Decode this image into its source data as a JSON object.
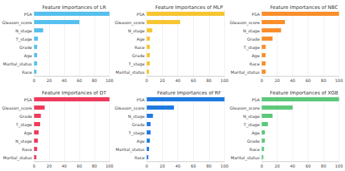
{
  "chart_data": [
    {
      "type": "bar",
      "orientation": "horizontal",
      "title": "Feature Importances of LR",
      "categories": [
        "PSA",
        "Gleason_score",
        "N_stage",
        "T_stage",
        "Grade",
        "Age",
        "Marital_status",
        "Race"
      ],
      "values": [
        100,
        60,
        12,
        5,
        4,
        4,
        4,
        3
      ],
      "color": "#55c0ee",
      "xlim": [
        0,
        100
      ],
      "xticks": [
        0,
        20,
        40,
        60,
        80,
        100
      ],
      "grid": true
    },
    {
      "type": "bar",
      "orientation": "horizontal",
      "title": "Feature Importances of MLP",
      "categories": [
        "PSA",
        "Gleason_score",
        "N_stage",
        "Age",
        "Race",
        "Grade",
        "T_stage",
        "Marital_status"
      ],
      "values": [
        100,
        43,
        7,
        4,
        4,
        4,
        4,
        3
      ],
      "color": "#f7c531",
      "xlim": [
        0,
        100
      ],
      "xticks": [
        0,
        20,
        40,
        60,
        80,
        100
      ],
      "grid": true
    },
    {
      "type": "bar",
      "orientation": "horizontal",
      "title": "Feature Importances of NBC",
      "categories": [
        "PSA",
        "Gleason_score",
        "N_stage",
        "Grade",
        "T_stage",
        "Age",
        "Race",
        "Marital_status"
      ],
      "values": [
        100,
        30,
        25,
        14,
        5,
        5,
        5,
        5
      ],
      "color": "#f98e2b",
      "xlim": [
        0,
        100
      ],
      "xticks": [
        0,
        20,
        40,
        60,
        80,
        100
      ],
      "grid": true
    },
    {
      "type": "bar",
      "orientation": "horizontal",
      "title": "Feature Importances of DT",
      "categories": [
        "PSA",
        "Gleason_score",
        "Grade",
        "T_stage",
        "Age",
        "N_stage",
        "Race",
        "Marital_status"
      ],
      "values": [
        100,
        14,
        9,
        8,
        6,
        5,
        4,
        3
      ],
      "color": "#ee3a5c",
      "xlim": [
        0,
        100
      ],
      "xticks": [
        0,
        20,
        40,
        60,
        80,
        100
      ],
      "grid": true
    },
    {
      "type": "bar",
      "orientation": "horizontal",
      "title": "Feature Importances of RF",
      "categories": [
        "PSA",
        "Gleason_score",
        "N_stage",
        "Grade",
        "T_stage",
        "Age",
        "Marital_status",
        "Race"
      ],
      "values": [
        100,
        35,
        8,
        5,
        5,
        4,
        3,
        2
      ],
      "color": "#1f7ae0",
      "xlim": [
        0,
        100
      ],
      "xticks": [
        0,
        20,
        40,
        60,
        80,
        100
      ],
      "grid": true
    },
    {
      "type": "bar",
      "orientation": "horizontal",
      "title": "Feature Importances of XGB",
      "categories": [
        "PSA",
        "Gleason_score",
        "N_stage",
        "T_stage",
        "Age",
        "Grade",
        "Race",
        "Marital_status"
      ],
      "values": [
        100,
        40,
        14,
        8,
        4,
        4,
        3,
        2
      ],
      "color": "#5bc87a",
      "xlim": [
        0,
        100
      ],
      "xticks": [
        0,
        20,
        40,
        60,
        80,
        100
      ],
      "grid": true
    }
  ]
}
